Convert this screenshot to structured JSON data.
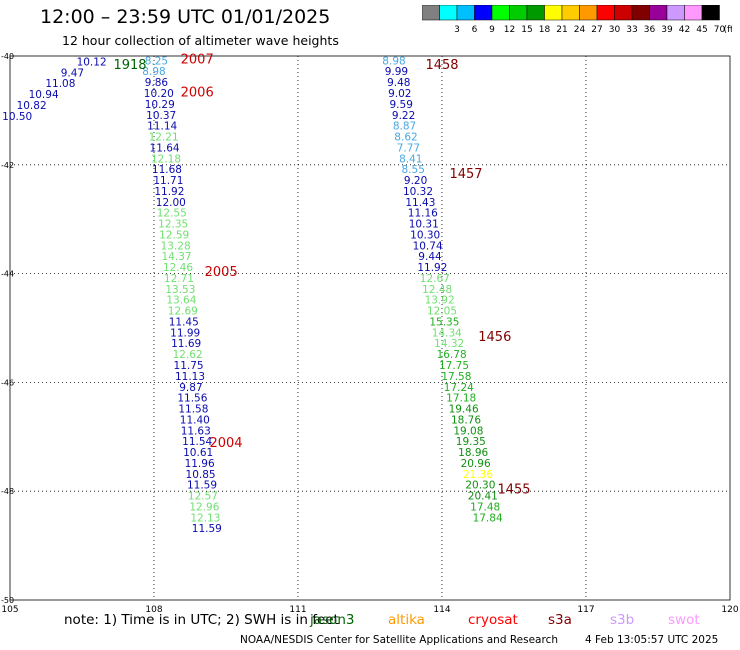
{
  "header": {
    "title": "12:00 – 23:59 UTC 01/01/2025",
    "subtitle": "12 hour collection of altimeter wave heights"
  },
  "colorbar": {
    "unit": "(ft)",
    "bins": [
      {
        "label": "",
        "color": "#808080"
      },
      {
        "label": "3",
        "color": "#00ffff"
      },
      {
        "label": "6",
        "color": "#00bfff"
      },
      {
        "label": "9",
        "color": "#0000ff"
      },
      {
        "label": "12",
        "color": "#00ff00"
      },
      {
        "label": "15",
        "color": "#00cc00"
      },
      {
        "label": "18",
        "color": "#009900"
      },
      {
        "label": "21",
        "color": "#ffff00"
      },
      {
        "label": "24",
        "color": "#ffcc00"
      },
      {
        "label": "27",
        "color": "#ff9900"
      },
      {
        "label": "30",
        "color": "#ff0000"
      },
      {
        "label": "33",
        "color": "#cc0000"
      },
      {
        "label": "36",
        "color": "#800000"
      },
      {
        "label": "39",
        "color": "#990099"
      },
      {
        "label": "42",
        "color": "#cc99ff"
      },
      {
        "label": "45",
        "color": "#ff99ff"
      },
      {
        "label": "70",
        "color": "#000000"
      }
    ]
  },
  "chart_data": {
    "type": "scatter",
    "xlim": [
      105,
      120
    ],
    "ylim": [
      -50,
      -40
    ],
    "xticks": [
      "105",
      "108",
      "111",
      "114",
      "117",
      "120"
    ],
    "yticks": [
      "-40",
      "-42",
      "-44",
      "-46",
      "-48",
      "-50"
    ],
    "grid": true,
    "legend": "bottom",
    "level_colors": {
      "6": "#4aa8e0",
      "9": "#0a0ab0",
      "12": "#70e070",
      "15": "#20b020",
      "18": "#109010",
      "21": "#ffff00"
    },
    "tracks": [
      {
        "track": "west",
        "points": [
          {
            "lon": 106.7,
            "lat": -40.1,
            "swh": 10.12,
            "color_level": "9"
          },
          {
            "lon": 106.3,
            "lat": -40.3,
            "swh": 9.47,
            "color_level": "9"
          },
          {
            "lon": 106.05,
            "lat": -40.5,
            "swh": 11.08,
            "color_level": "9"
          },
          {
            "lon": 105.7,
            "lat": -40.7,
            "swh": 10.94,
            "color_level": "9"
          },
          {
            "lon": 105.45,
            "lat": -40.9,
            "swh": 10.82,
            "color_level": "9"
          },
          {
            "lon": 105.15,
            "lat": -41.1,
            "swh": 10.5,
            "color_level": "9"
          },
          {
            "lon": 108.05,
            "lat": -40.08,
            "swh": 8.25,
            "color_level": "6"
          },
          {
            "lon": 108.0,
            "lat": -40.28,
            "swh": 8.98,
            "color_level": "6"
          },
          {
            "lon": 108.05,
            "lat": -40.48,
            "swh": 9.86,
            "color_level": "9"
          },
          {
            "lon": 108.1,
            "lat": -40.68,
            "swh": 10.2,
            "color_level": "9"
          },
          {
            "lon": 108.12,
            "lat": -40.88,
            "swh": 10.29,
            "color_level": "9"
          },
          {
            "lon": 108.15,
            "lat": -41.08,
            "swh": 10.37,
            "color_level": "9"
          },
          {
            "lon": 108.17,
            "lat": -41.28,
            "swh": 11.14,
            "color_level": "9"
          },
          {
            "lon": 108.2,
            "lat": -41.48,
            "swh": 12.21,
            "color_level": "12"
          },
          {
            "lon": 108.22,
            "lat": -41.68,
            "swh": 11.64,
            "color_level": "9"
          },
          {
            "lon": 108.25,
            "lat": -41.88,
            "swh": 12.18,
            "color_level": "12"
          },
          {
            "lon": 108.27,
            "lat": -42.08,
            "swh": 11.68,
            "color_level": "9"
          },
          {
            "lon": 108.3,
            "lat": -42.28,
            "swh": 11.71,
            "color_level": "9"
          },
          {
            "lon": 108.32,
            "lat": -42.48,
            "swh": 11.92,
            "color_level": "9"
          },
          {
            "lon": 108.35,
            "lat": -42.68,
            "swh": 12.0,
            "color_level": "9"
          },
          {
            "lon": 108.37,
            "lat": -42.88,
            "swh": 12.55,
            "color_level": "12"
          },
          {
            "lon": 108.4,
            "lat": -43.08,
            "swh": 12.35,
            "color_level": "12"
          },
          {
            "lon": 108.42,
            "lat": -43.28,
            "swh": 12.59,
            "color_level": "12"
          },
          {
            "lon": 108.45,
            "lat": -43.48,
            "swh": 13.28,
            "color_level": "12"
          },
          {
            "lon": 108.47,
            "lat": -43.68,
            "swh": 14.37,
            "color_level": "12"
          },
          {
            "lon": 108.5,
            "lat": -43.88,
            "swh": 12.46,
            "color_level": "12"
          },
          {
            "lon": 108.52,
            "lat": -44.08,
            "swh": 12.71,
            "color_level": "12"
          },
          {
            "lon": 108.55,
            "lat": -44.28,
            "swh": 13.53,
            "color_level": "12"
          },
          {
            "lon": 108.57,
            "lat": -44.48,
            "swh": 13.64,
            "color_level": "12"
          },
          {
            "lon": 108.6,
            "lat": -44.68,
            "swh": 12.69,
            "color_level": "12"
          },
          {
            "lon": 108.62,
            "lat": -44.88,
            "swh": 11.45,
            "color_level": "9"
          },
          {
            "lon": 108.65,
            "lat": -45.08,
            "swh": 11.99,
            "color_level": "9"
          },
          {
            "lon": 108.67,
            "lat": -45.28,
            "swh": 11.69,
            "color_level": "9"
          },
          {
            "lon": 108.7,
            "lat": -45.48,
            "swh": 12.62,
            "color_level": "12"
          },
          {
            "lon": 108.72,
            "lat": -45.68,
            "swh": 11.75,
            "color_level": "9"
          },
          {
            "lon": 108.75,
            "lat": -45.88,
            "swh": 11.13,
            "color_level": "9"
          },
          {
            "lon": 108.77,
            "lat": -46.08,
            "swh": 9.87,
            "color_level": "9"
          },
          {
            "lon": 108.8,
            "lat": -46.28,
            "swh": 11.56,
            "color_level": "9"
          },
          {
            "lon": 108.82,
            "lat": -46.48,
            "swh": 11.58,
            "color_level": "9"
          },
          {
            "lon": 108.85,
            "lat": -46.68,
            "swh": 11.4,
            "color_level": "9"
          },
          {
            "lon": 108.87,
            "lat": -46.88,
            "swh": 11.63,
            "color_level": "9"
          },
          {
            "lon": 108.9,
            "lat": -47.08,
            "swh": 11.54,
            "color_level": "9"
          },
          {
            "lon": 108.92,
            "lat": -47.28,
            "swh": 10.61,
            "color_level": "9"
          },
          {
            "lon": 108.95,
            "lat": -47.48,
            "swh": 11.96,
            "color_level": "9"
          },
          {
            "lon": 108.97,
            "lat": -47.68,
            "swh": 10.85,
            "color_level": "9"
          },
          {
            "lon": 109.0,
            "lat": -47.88,
            "swh": 11.59,
            "color_level": "9"
          },
          {
            "lon": 109.02,
            "lat": -48.08,
            "swh": 12.57,
            "color_level": "12"
          },
          {
            "lon": 109.05,
            "lat": -48.28,
            "swh": 12.96,
            "color_level": "12"
          },
          {
            "lon": 109.07,
            "lat": -48.48,
            "swh": 12.13,
            "color_level": "12"
          },
          {
            "lon": 109.1,
            "lat": -48.68,
            "swh": 11.59,
            "color_level": "9"
          }
        ]
      },
      {
        "track": "east",
        "points": [
          {
            "lon": 113.0,
            "lat": -40.08,
            "swh": 8.98,
            "color_level": "6"
          },
          {
            "lon": 113.05,
            "lat": -40.28,
            "swh": 9.99,
            "color_level": "9"
          },
          {
            "lon": 113.1,
            "lat": -40.48,
            "swh": 9.48,
            "color_level": "9"
          },
          {
            "lon": 113.12,
            "lat": -40.68,
            "swh": 9.02,
            "color_level": "9"
          },
          {
            "lon": 113.15,
            "lat": -40.88,
            "swh": 9.59,
            "color_level": "9"
          },
          {
            "lon": 113.2,
            "lat": -41.08,
            "swh": 9.22,
            "color_level": "9"
          },
          {
            "lon": 113.22,
            "lat": -41.28,
            "swh": 8.87,
            "color_level": "6"
          },
          {
            "lon": 113.25,
            "lat": -41.48,
            "swh": 8.62,
            "color_level": "6"
          },
          {
            "lon": 113.3,
            "lat": -41.68,
            "swh": 7.77,
            "color_level": "6"
          },
          {
            "lon": 113.35,
            "lat": -41.88,
            "swh": 8.41,
            "color_level": "6"
          },
          {
            "lon": 113.4,
            "lat": -42.08,
            "swh": 8.55,
            "color_level": "6"
          },
          {
            "lon": 113.45,
            "lat": -42.28,
            "swh": 9.2,
            "color_level": "9"
          },
          {
            "lon": 113.5,
            "lat": -42.48,
            "swh": 10.32,
            "color_level": "9"
          },
          {
            "lon": 113.55,
            "lat": -42.68,
            "swh": 11.43,
            "color_level": "9"
          },
          {
            "lon": 113.6,
            "lat": -42.88,
            "swh": 11.16,
            "color_level": "9"
          },
          {
            "lon": 113.62,
            "lat": -43.08,
            "swh": 10.31,
            "color_level": "9"
          },
          {
            "lon": 113.65,
            "lat": -43.28,
            "swh": 10.3,
            "color_level": "9"
          },
          {
            "lon": 113.7,
            "lat": -43.48,
            "swh": 10.74,
            "color_level": "9"
          },
          {
            "lon": 113.75,
            "lat": -43.68,
            "swh": 9.44,
            "color_level": "9"
          },
          {
            "lon": 113.8,
            "lat": -43.88,
            "swh": 11.92,
            "color_level": "9"
          },
          {
            "lon": 113.85,
            "lat": -44.08,
            "swh": 12.67,
            "color_level": "12"
          },
          {
            "lon": 113.9,
            "lat": -44.28,
            "swh": 12.48,
            "color_level": "12"
          },
          {
            "lon": 113.95,
            "lat": -44.48,
            "swh": 13.92,
            "color_level": "12"
          },
          {
            "lon": 114.0,
            "lat": -44.68,
            "swh": 12.05,
            "color_level": "12"
          },
          {
            "lon": 114.05,
            "lat": -44.88,
            "swh": 15.35,
            "color_level": "15"
          },
          {
            "lon": 114.1,
            "lat": -45.08,
            "swh": 14.34,
            "color_level": "12"
          },
          {
            "lon": 114.15,
            "lat": -45.28,
            "swh": 14.32,
            "color_level": "12"
          },
          {
            "lon": 114.2,
            "lat": -45.48,
            "swh": 16.78,
            "color_level": "15"
          },
          {
            "lon": 114.25,
            "lat": -45.68,
            "swh": 17.75,
            "color_level": "15"
          },
          {
            "lon": 114.3,
            "lat": -45.88,
            "swh": 17.58,
            "color_level": "15"
          },
          {
            "lon": 114.35,
            "lat": -46.08,
            "swh": 17.24,
            "color_level": "15"
          },
          {
            "lon": 114.4,
            "lat": -46.28,
            "swh": 17.18,
            "color_level": "15"
          },
          {
            "lon": 114.45,
            "lat": -46.48,
            "swh": 19.46,
            "color_level": "18"
          },
          {
            "lon": 114.5,
            "lat": -46.68,
            "swh": 18.76,
            "color_level": "18"
          },
          {
            "lon": 114.55,
            "lat": -46.88,
            "swh": 19.08,
            "color_level": "18"
          },
          {
            "lon": 114.6,
            "lat": -47.08,
            "swh": 19.35,
            "color_level": "18"
          },
          {
            "lon": 114.65,
            "lat": -47.28,
            "swh": 18.96,
            "color_level": "18"
          },
          {
            "lon": 114.7,
            "lat": -47.48,
            "swh": 20.96,
            "color_level": "18"
          },
          {
            "lon": 114.75,
            "lat": -47.68,
            "swh": 21.36,
            "color_level": "21"
          },
          {
            "lon": 114.8,
            "lat": -47.88,
            "swh": 20.3,
            "color_level": "18"
          },
          {
            "lon": 114.85,
            "lat": -48.08,
            "swh": 20.41,
            "color_level": "18"
          },
          {
            "lon": 114.9,
            "lat": -48.28,
            "swh": 17.48,
            "color_level": "15"
          },
          {
            "lon": 114.95,
            "lat": -48.48,
            "swh": 17.84,
            "color_level": "15"
          }
        ]
      }
    ],
    "time_labels": [
      {
        "text": "1918",
        "lon": 107.5,
        "lat": -40.15,
        "color": "#006400"
      },
      {
        "text": "2007",
        "lon": 108.9,
        "lat": -40.05,
        "color": "#cc0000"
      },
      {
        "text": "2006",
        "lon": 108.9,
        "lat": -40.65,
        "color": "#cc0000"
      },
      {
        "text": "2005",
        "lon": 109.4,
        "lat": -43.95,
        "color": "#cc0000"
      },
      {
        "text": "2004",
        "lon": 109.5,
        "lat": -47.1,
        "color": "#cc0000"
      },
      {
        "text": "1458",
        "lon": 114.0,
        "lat": -40.15,
        "color": "#800000"
      },
      {
        "text": "1457",
        "lon": 114.5,
        "lat": -42.15,
        "color": "#800000"
      },
      {
        "text": "1456",
        "lon": 115.1,
        "lat": -45.15,
        "color": "#800000"
      },
      {
        "text": "1455",
        "lon": 115.5,
        "lat": -47.95,
        "color": "#800000"
      }
    ]
  },
  "footer": {
    "note": "note:  1) Time is in UTC; 2) SWH is in feet",
    "satellites": [
      {
        "name": "jason3",
        "color": "#006400",
        "pos": 310
      },
      {
        "name": "altika",
        "color": "#ff9900",
        "pos": 388
      },
      {
        "name": "cryosat",
        "color": "#ff0000",
        "pos": 468
      },
      {
        "name": "s3a",
        "color": "#800000",
        "pos": 548
      },
      {
        "name": "s3b",
        "color": "#cc99ff",
        "pos": 610
      },
      {
        "name": "swot",
        "color": "#ff99ff",
        "pos": 668
      }
    ],
    "credit": "NOAA/NESDIS Center for Satellite Applications and Research",
    "timestamp": "4 Feb 13:05:57 UTC 2025"
  }
}
